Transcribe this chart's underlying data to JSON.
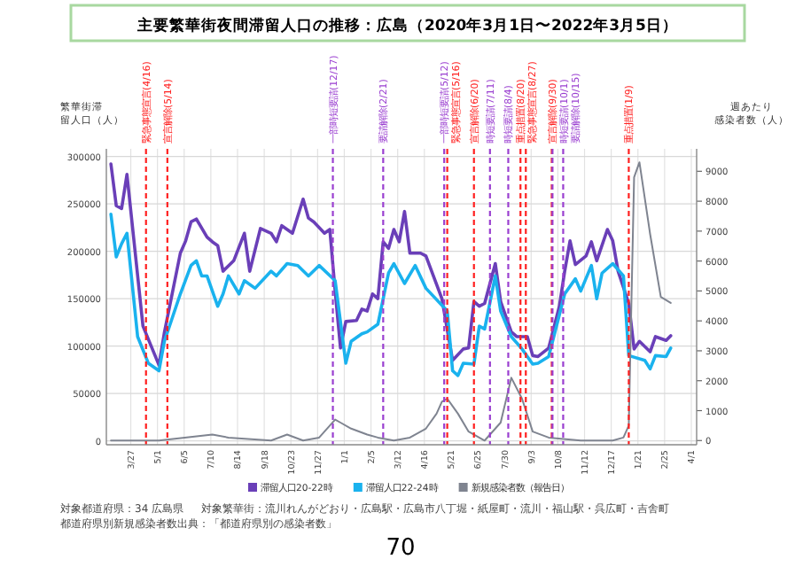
{
  "chart_data": {
    "type": "line",
    "title": "主要繁華街夜間滞留人口の推移：広島（2020年3月1日〜2022年3月5日）",
    "ylabel": "繁華街滞留人口（人）",
    "y2label": "週あたり感染者数（人）",
    "xlim": [
      "2020-02-24",
      "2022-04-08"
    ],
    "xticks": [
      {
        "value": "2020-03-27",
        "label": "3/27"
      },
      {
        "value": "2020-05-01",
        "label": "5/1"
      },
      {
        "value": "2020-06-05",
        "label": "6/5"
      },
      {
        "value": "2020-07-10",
        "label": "7/10"
      },
      {
        "value": "2020-08-14",
        "label": "8/14"
      },
      {
        "value": "2020-09-18",
        "label": "9/18"
      },
      {
        "value": "2020-10-23",
        "label": "10/23"
      },
      {
        "value": "2020-11-27",
        "label": "11/27"
      },
      {
        "value": "2021-01-01",
        "label": "1/1"
      },
      {
        "value": "2021-02-05",
        "label": "2/5"
      },
      {
        "value": "2021-03-12",
        "label": "3/12"
      },
      {
        "value": "2021-04-16",
        "label": "4/16"
      },
      {
        "value": "2021-05-21",
        "label": "5/21"
      },
      {
        "value": "2021-06-25",
        "label": "6/25"
      },
      {
        "value": "2021-07-30",
        "label": "7/30"
      },
      {
        "value": "2021-09-03",
        "label": "9/3"
      },
      {
        "value": "2021-10-08",
        "label": "10/8"
      },
      {
        "value": "2021-11-12",
        "label": "11/12"
      },
      {
        "value": "2021-12-17",
        "label": "12/17"
      },
      {
        "value": "2022-01-21",
        "label": "1/21"
      },
      {
        "value": "2022-02-25",
        "label": "2/25"
      },
      {
        "value": "2022-04-01",
        "label": "4/1"
      }
    ],
    "ylim": [
      -4000,
      308000
    ],
    "yticks": [
      0,
      50000,
      100000,
      150000,
      200000,
      250000,
      300000
    ],
    "y2lim": [
      -140,
      9750
    ],
    "y2ticks": [
      0,
      1000,
      2000,
      3000,
      4000,
      5000,
      6000,
      7000,
      8000,
      9000
    ],
    "grid": true,
    "legend": "bottom",
    "marker": "none",
    "line_style": "solid",
    "series": [
      {
        "name": "滞留人口20-22時",
        "color": "#6a3fb8",
        "x": [
          "2020-03-01",
          "2020-03-08",
          "2020-03-15",
          "2020-03-22",
          "2020-04-12",
          "2020-05-03",
          "2020-05-10",
          "2020-05-31",
          "2020-06-07",
          "2020-06-14",
          "2020-06-21",
          "2020-07-05",
          "2020-07-12",
          "2020-07-19",
          "2020-07-26",
          "2020-08-09",
          "2020-08-23",
          "2020-08-30",
          "2020-09-13",
          "2020-09-27",
          "2020-10-04",
          "2020-10-11",
          "2020-10-25",
          "2020-11-08",
          "2020-11-15",
          "2020-11-22",
          "2020-12-06",
          "2020-12-13",
          "2020-12-20",
          "2020-12-27",
          "2021-01-03",
          "2021-01-17",
          "2021-01-24",
          "2021-01-31",
          "2021-02-07",
          "2021-02-14",
          "2021-02-21",
          "2021-02-28",
          "2021-03-07",
          "2021-03-14",
          "2021-03-21",
          "2021-03-28",
          "2021-04-11",
          "2021-04-18",
          "2021-05-09",
          "2021-05-23",
          "2021-06-06",
          "2021-06-13",
          "2021-06-20",
          "2021-06-27",
          "2021-07-04",
          "2021-07-18",
          "2021-07-25",
          "2021-08-08",
          "2021-08-15",
          "2021-08-29",
          "2021-09-05",
          "2021-09-12",
          "2021-09-26",
          "2021-10-10",
          "2021-10-17",
          "2021-10-24",
          "2021-10-31",
          "2021-11-14",
          "2021-11-21",
          "2021-11-28",
          "2021-12-12",
          "2021-12-19",
          "2021-12-26",
          "2022-01-09",
          "2022-01-16",
          "2022-01-23",
          "2022-02-06",
          "2022-02-13",
          "2022-02-27",
          "2022-03-05"
        ],
        "values": [
          292000,
          248000,
          245000,
          281000,
          121000,
          80000,
          114000,
          198000,
          211000,
          231000,
          234000,
          215000,
          210000,
          206000,
          179000,
          190000,
          219000,
          179000,
          224000,
          219000,
          210000,
          227000,
          219000,
          255000,
          235000,
          231000,
          219000,
          223000,
          158000,
          98000,
          126000,
          127000,
          139000,
          137000,
          155000,
          150000,
          210000,
          203000,
          223000,
          210000,
          242000,
          198000,
          198000,
          195000,
          150000,
          85000,
          97000,
          98000,
          147000,
          142000,
          145000,
          187000,
          147000,
          115000,
          110000,
          110000,
          90000,
          89000,
          98000,
          142000,
          179000,
          211000,
          186000,
          195000,
          210000,
          190000,
          223000,
          211000,
          179000,
          145000,
          97000,
          105000,
          94000,
          110000,
          106000,
          111000
        ]
      },
      {
        "name": "滞留人口22-24時",
        "color": "#1ab2ee",
        "x": [
          "2020-03-01",
          "2020-03-08",
          "2020-03-15",
          "2020-03-22",
          "2020-04-05",
          "2020-04-19",
          "2020-05-03",
          "2020-05-10",
          "2020-05-31",
          "2020-06-14",
          "2020-06-21",
          "2020-06-28",
          "2020-07-05",
          "2020-07-19",
          "2020-07-26",
          "2020-08-02",
          "2020-08-16",
          "2020-08-23",
          "2020-09-06",
          "2020-09-27",
          "2020-10-04",
          "2020-10-18",
          "2020-11-01",
          "2020-11-15",
          "2020-11-29",
          "2020-12-20",
          "2021-01-03",
          "2021-01-10",
          "2021-01-24",
          "2021-01-31",
          "2021-02-14",
          "2021-02-28",
          "2021-03-07",
          "2021-03-21",
          "2021-04-04",
          "2021-04-18",
          "2021-05-16",
          "2021-05-23",
          "2021-05-30",
          "2021-06-06",
          "2021-06-20",
          "2021-06-27",
          "2021-07-04",
          "2021-07-18",
          "2021-07-25",
          "2021-08-08",
          "2021-08-22",
          "2021-09-05",
          "2021-09-12",
          "2021-09-26",
          "2021-10-17",
          "2021-10-31",
          "2021-11-07",
          "2021-11-21",
          "2021-11-28",
          "2021-12-05",
          "2021-12-19",
          "2022-01-02",
          "2022-01-09",
          "2022-01-30",
          "2022-02-06",
          "2022-02-13",
          "2022-02-27",
          "2022-03-05"
        ],
        "values": [
          239000,
          194000,
          208000,
          219000,
          110000,
          82000,
          74000,
          105000,
          155000,
          185000,
          190000,
          174000,
          174000,
          142000,
          155000,
          174000,
          155000,
          169000,
          161000,
          179000,
          174000,
          187000,
          185000,
          174000,
          185000,
          169000,
          82000,
          105000,
          113000,
          115000,
          123000,
          177000,
          187000,
          166000,
          185000,
          161000,
          137000,
          74000,
          69000,
          82000,
          81000,
          121000,
          118000,
          174000,
          137000,
          110000,
          97000,
          81000,
          82000,
          89000,
          155000,
          171000,
          158000,
          185000,
          150000,
          177000,
          187000,
          174000,
          90000,
          85000,
          76000,
          90000,
          89000,
          98000
        ]
      },
      {
        "name": "新規感染者数（報告日）",
        "color": "#7f8490",
        "axis": "y2",
        "x": [
          "2020-03-01",
          "2020-05-03",
          "2020-07-12",
          "2020-08-02",
          "2020-09-27",
          "2020-10-18",
          "2020-11-08",
          "2020-11-29",
          "2020-12-13",
          "2020-12-20",
          "2020-12-27",
          "2021-01-10",
          "2021-01-31",
          "2021-02-14",
          "2021-03-07",
          "2021-03-28",
          "2021-04-18",
          "2021-05-02",
          "2021-05-09",
          "2021-05-16",
          "2021-05-30",
          "2021-06-13",
          "2021-07-04",
          "2021-07-25",
          "2021-08-08",
          "2021-08-22",
          "2021-09-05",
          "2021-09-26",
          "2021-11-07",
          "2021-12-19",
          "2022-01-02",
          "2022-01-09",
          "2022-01-16",
          "2022-01-23",
          "2022-02-06",
          "2022-02-20",
          "2022-03-05"
        ],
        "values": [
          0,
          0,
          200,
          100,
          0,
          200,
          0,
          100,
          500,
          700,
          600,
          400,
          200,
          100,
          0,
          100,
          400,
          900,
          1300,
          1400,
          900,
          300,
          0,
          600,
          2100,
          1400,
          300,
          100,
          0,
          0,
          100,
          500,
          8800,
          9300,
          6900,
          4800,
          4600
        ]
      }
    ],
    "ref_lines": [
      {
        "axis": "x",
        "value": "2020-04-16",
        "label": "緊急事態宣言(4/16)",
        "color": "#ff2020",
        "line_style": "dashed"
      },
      {
        "axis": "x",
        "value": "2020-05-14",
        "label": "宣言解除(5/14)",
        "color": "#ff2020",
        "line_style": "dashed"
      },
      {
        "axis": "x",
        "value": "2020-12-17",
        "label": "一部時短要請(12/17)",
        "color": "#9a3fd0",
        "line_style": "dashed"
      },
      {
        "axis": "x",
        "value": "2021-02-21",
        "label": "要請解除(2/21)",
        "color": "#9a3fd0",
        "line_style": "dashed"
      },
      {
        "axis": "x",
        "value": "2021-05-12",
        "label": "一部時短要請(5/12)",
        "color": "#9a3fd0",
        "line_style": "dashed"
      },
      {
        "axis": "x",
        "value": "2021-05-16",
        "label": "緊急事態宣言(5/16)",
        "color": "#ff2020",
        "line_style": "dashed"
      },
      {
        "axis": "x",
        "value": "2021-06-20",
        "label": "宣言解除(6/20)",
        "color": "#ff2020",
        "line_style": "dashed"
      },
      {
        "axis": "x",
        "value": "2021-07-11",
        "label": "時短要請(7/11)",
        "color": "#9a3fd0",
        "line_style": "dashed"
      },
      {
        "axis": "x",
        "value": "2021-08-04",
        "label": "時短要請(8/4)",
        "color": "#9a3fd0",
        "line_style": "dashed"
      },
      {
        "axis": "x",
        "value": "2021-08-20",
        "label": "重点措置(8/20)",
        "color": "#ff2020",
        "line_style": "dashed"
      },
      {
        "axis": "x",
        "value": "2021-08-27",
        "label": "緊急事態宣言(8/27)",
        "color": "#ff2020",
        "line_style": "dashed"
      },
      {
        "axis": "x",
        "value": "2021-09-30",
        "label": "宣言解除(9/30)",
        "color": "#ff2020",
        "line_style": "dashed"
      },
      {
        "axis": "x",
        "value": "2021-10-01",
        "label": "時短要請(10/1)",
        "color": "#9a3fd0",
        "line_style": "dashed"
      },
      {
        "axis": "x",
        "value": "2021-10-15",
        "label": "要請解除(10/15)",
        "color": "#9a3fd0",
        "line_style": "dashed"
      },
      {
        "axis": "x",
        "value": "2022-01-09",
        "label": "重点措置(1/9)",
        "color": "#ff2020",
        "line_style": "dashed"
      }
    ],
    "annotations": [
      "対象都道府県：34 広島県",
      "対象繁華街：流川れんがどおり・広島駅・広島市八丁堀・紙屋町・流川・福山駅・呉広町・吉舎町",
      "都道府県別新規感染者数出典：「都道府県別の感染者数」",
      "70"
    ]
  }
}
